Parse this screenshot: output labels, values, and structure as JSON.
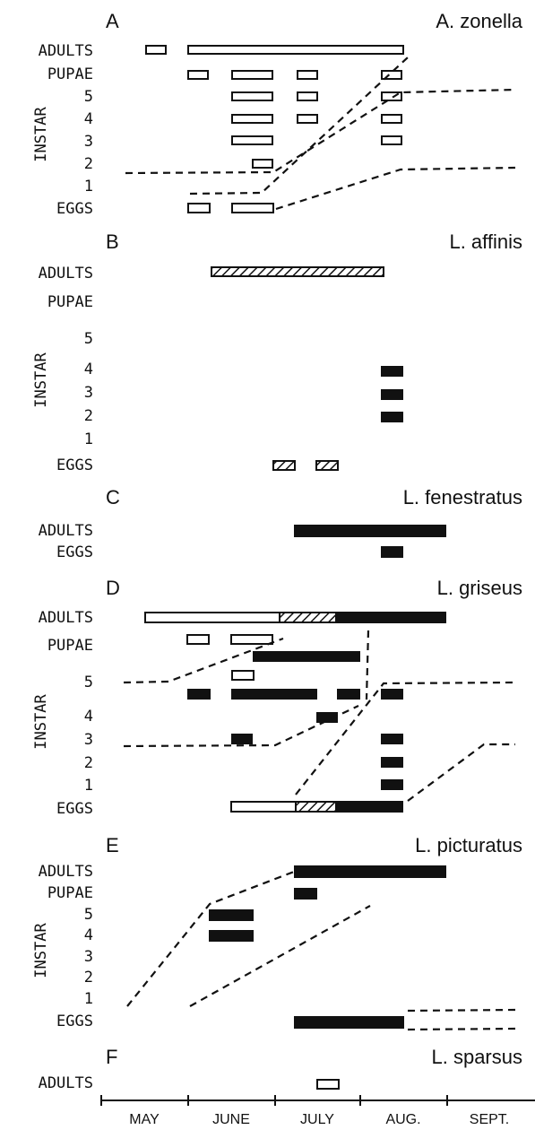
{
  "months": [
    "MAY",
    "JUNE",
    "JULY",
    "AUG.",
    "SEPT."
  ],
  "panels": [
    {
      "letter": "A",
      "species": "A. zonella",
      "rows": [
        "ADULTS",
        "PUPAE",
        "5",
        "4",
        "3",
        "2",
        "1",
        "EGGS"
      ],
      "instar_label": "INSTAR"
    },
    {
      "letter": "B",
      "species": "L. affinis",
      "rows": [
        "ADULTS",
        "PUPAE",
        "5",
        "4",
        "3",
        "2",
        "1",
        "EGGS"
      ],
      "instar_label": "INSTAR"
    },
    {
      "letter": "C",
      "species": "L. fenestratus",
      "rows": [
        "ADULTS",
        "EGGS"
      ]
    },
    {
      "letter": "D",
      "species": "L. griseus",
      "rows": [
        "ADULTS",
        "PUPAE",
        "5",
        "4",
        "3",
        "2",
        "1",
        "EGGS"
      ],
      "instar_label": "INSTAR"
    },
    {
      "letter": "E",
      "species": "L. picturatus",
      "rows": [
        "ADULTS",
        "PUPAE",
        "5",
        "4",
        "3",
        "2",
        "1",
        "EGGS"
      ],
      "instar_label": "INSTAR"
    },
    {
      "letter": "F",
      "species": "L. sparsus",
      "rows": [
        "ADULTS"
      ]
    }
  ]
}
